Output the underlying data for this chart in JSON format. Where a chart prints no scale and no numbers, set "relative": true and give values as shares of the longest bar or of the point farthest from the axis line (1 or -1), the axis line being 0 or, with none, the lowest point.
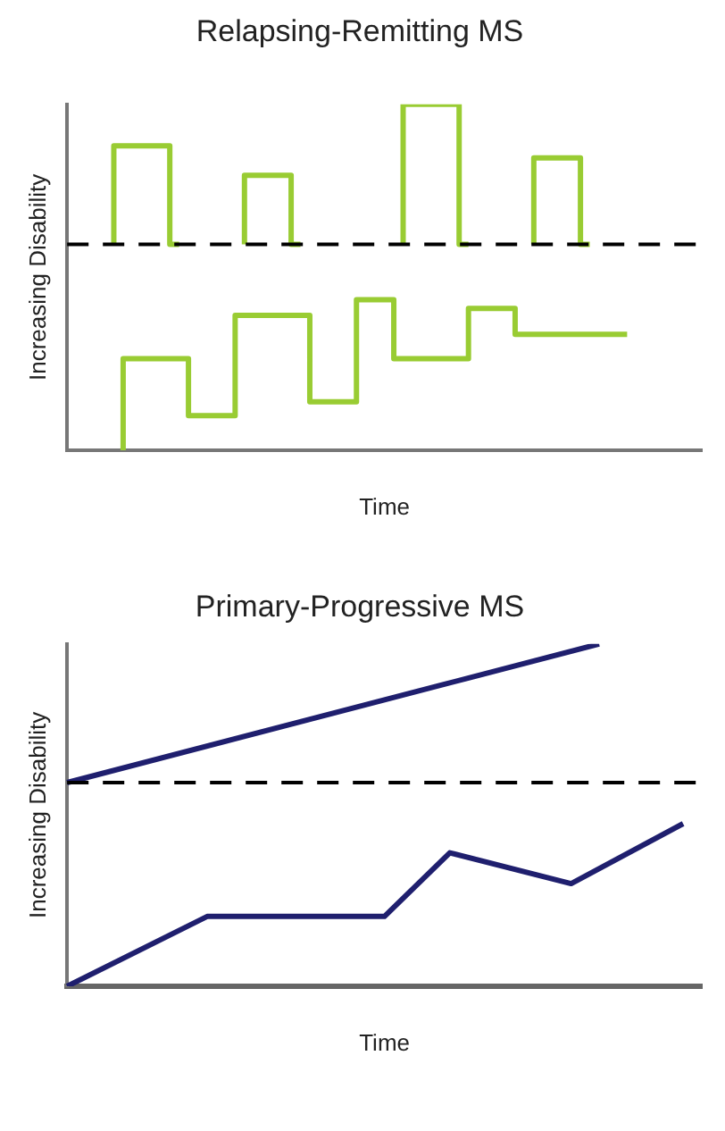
{
  "chart_data": [
    {
      "type": "step",
      "title": "Relapsing-Remitting MS",
      "xlabel": "Time",
      "ylabel": "Increasing Disability",
      "relative": true,
      "grid": false,
      "legend": false,
      "marker": "none",
      "categories": [
        null,
        null,
        null,
        null,
        null,
        null,
        null,
        null,
        null,
        null,
        null,
        null,
        null,
        null,
        null,
        null,
        null,
        null,
        null,
        null,
        null,
        null,
        null,
        null,
        null,
        null,
        null,
        null,
        null,
        null,
        null,
        null,
        null,
        null,
        null,
        null,
        null,
        null,
        null,
        null,
        null,
        null,
        null,
        null,
        null,
        null,
        null,
        null,
        null,
        null,
        null,
        null,
        null,
        null,
        null,
        null,
        null,
        null,
        null,
        null,
        null,
        null,
        null,
        null,
        null,
        null,
        null,
        null,
        null
      ],
      "series": [
        {
          "color": "#99cc33",
          "values": [
            null,
            null,
            null,
            null,
            null,
            0.595,
            0.88,
            0.88,
            0.88,
            0.88,
            0.88,
            0.88,
            0.595,
            null,
            null,
            null,
            null,
            null,
            null,
            0.595,
            0.795,
            0.795,
            0.795,
            0.795,
            0.795,
            0.595,
            null,
            null,
            null,
            null,
            null,
            null,
            null,
            null,
            null,
            null,
            0.595,
            1,
            1,
            1,
            1,
            1,
            1,
            0.595,
            null,
            null,
            null,
            null,
            null,
            null,
            0.595,
            0.845,
            0.845,
            0.845,
            0.845,
            0.845,
            0.595,
            null,
            null,
            null,
            null,
            null,
            null,
            null,
            null,
            null,
            null,
            null,
            null
          ]
        },
        {
          "color": "#99cc33",
          "values": [
            null,
            null,
            null,
            null,
            null,
            null,
            0,
            0.265,
            0.265,
            0.265,
            0.265,
            0.265,
            0.265,
            0.265,
            0.1,
            0.1,
            0.1,
            0.1,
            0.1,
            0.39,
            0.39,
            0.39,
            0.39,
            0.39,
            0.39,
            0.39,
            0.39,
            0.14,
            0.14,
            0.14,
            0.14,
            0.14,
            0.435,
            0.435,
            0.435,
            0.435,
            0.265,
            0.265,
            0.265,
            0.265,
            0.265,
            0.265,
            0.265,
            0.265,
            0.41,
            0.41,
            0.41,
            0.41,
            0.41,
            0.335,
            0.335,
            0.335,
            0.335,
            0.335,
            0.335,
            0.335,
            0.335,
            0.335,
            0.335,
            0.335,
            0.335,
            null,
            null,
            null,
            null,
            null,
            null,
            null,
            null
          ]
        }
      ],
      "ref_lines": [
        {
          "axis": "y",
          "value": 0.595,
          "color": "#000000",
          "line_style": "dashed"
        }
      ]
    },
    {
      "type": "line",
      "title": "Primary-Progressive MS",
      "xlabel": "Time",
      "ylabel": "Increasing Disability",
      "relative": true,
      "grid": false,
      "legend": false,
      "marker": "none",
      "categories": [
        null,
        null,
        null,
        null,
        null,
        null,
        null,
        null,
        null,
        null,
        null,
        null,
        null,
        null,
        null,
        null,
        null,
        null,
        null,
        null,
        null,
        null,
        null,
        null,
        null,
        null,
        null,
        null,
        null,
        null,
        null,
        null,
        null,
        null,
        null,
        null,
        null,
        null,
        null,
        null,
        null,
        null,
        null,
        null,
        null,
        null,
        null,
        null,
        null,
        null,
        null,
        null,
        null,
        null,
        null,
        null,
        null,
        null,
        null,
        null,
        null,
        null,
        null,
        null,
        null,
        null,
        null,
        null,
        null
      ],
      "series": [
        {
          "color": "#1f1f6e",
          "values": [
            0.595,
            null,
            null,
            null,
            null,
            null,
            null,
            null,
            null,
            null,
            null,
            null,
            null,
            null,
            null,
            null,
            null,
            null,
            null,
            null,
            null,
            null,
            null,
            null,
            null,
            null,
            null,
            null,
            null,
            null,
            null,
            null,
            null,
            null,
            null,
            null,
            null,
            null,
            null,
            null,
            null,
            null,
            null,
            null,
            null,
            null,
            null,
            null,
            null,
            null,
            null,
            null,
            null,
            null,
            null,
            null,
            null,
            1,
            null,
            null,
            null,
            null,
            null,
            null,
            null,
            null,
            null,
            null,
            null
          ]
        },
        {
          "color": "#1f1f6e",
          "values": [
            0,
            null,
            null,
            null,
            null,
            null,
            null,
            null,
            null,
            null,
            null,
            null,
            null,
            null,
            null,
            0.204,
            null,
            null,
            null,
            null,
            null,
            null,
            null,
            null,
            null,
            null,
            null,
            null,
            null,
            null,
            null,
            null,
            null,
            null,
            0.204,
            null,
            null,
            null,
            null,
            null,
            null,
            0.39,
            null,
            null,
            null,
            null,
            null,
            null,
            null,
            null,
            null,
            null,
            null,
            null,
            0.3,
            null,
            null,
            null,
            null,
            null,
            null,
            null,
            null,
            null,
            null,
            null,
            0.475,
            null,
            null
          ]
        }
      ],
      "ref_lines": [
        {
          "axis": "y",
          "value": 0.595,
          "color": "#000000",
          "line_style": "dashed"
        }
      ]
    }
  ]
}
